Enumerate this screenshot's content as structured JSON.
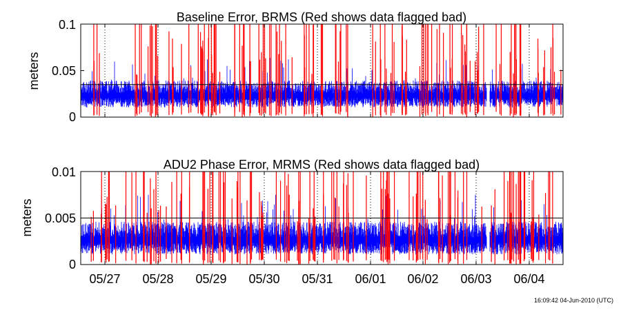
{
  "timestamp": "16:09:42 04-Jun-2010 (UTC)",
  "colors": {
    "good": "#0000ff",
    "bad": "#ff0000",
    "axis": "#000000",
    "background": "#ffffff"
  },
  "chart_data": [
    {
      "type": "line",
      "title": "Baseline Error, BRMS (Red shows data flagged bad)",
      "ylabel": "meters",
      "ylim": [
        0,
        0.1
      ],
      "yticks": [
        "0",
        "0.05",
        "0.1"
      ],
      "threshold": 0.035,
      "grid": "dotted vertical at day boundaries",
      "x_range": [
        "05/26 ~14:00",
        "06/04 ~16:09"
      ],
      "series": [
        {
          "values_summary": {
            "typical_range": [
              0.012,
              0.035
            ],
            "median": 0.022
          },
          "color": "#0000ff"
        },
        {
          "values_summary": {
            "flagged_spikes": "frequent vertical spikes reaching 0.04 to above 0.1"
          },
          "color": "#ff0000"
        }
      ],
      "data_gap_near": "06/03 ~06:00"
    },
    {
      "type": "line",
      "title": "ADU2 Phase Error, MRMS (Red shows data flagged bad)",
      "ylabel": "meters",
      "ylim": [
        0,
        0.01
      ],
      "yticks": [
        "0",
        "0.005",
        "0.01"
      ],
      "threshold": 0.005,
      "grid": "dotted vertical at day boundaries",
      "x_range": [
        "05/26 ~14:00",
        "06/04 ~16:09"
      ],
      "xticks": [
        "05/27",
        "05/28",
        "05/29",
        "05/30",
        "05/31",
        "06/01",
        "06/02",
        "06/03",
        "06/04"
      ],
      "series": [
        {
          "values_summary": {
            "typical_range": [
              0.0012,
              0.004
            ],
            "median": 0.0025
          },
          "color": "#0000ff"
        },
        {
          "values_summary": {
            "flagged_spikes": "frequent vertical spikes reaching 0.004 to above 0.01"
          },
          "color": "#ff0000"
        }
      ],
      "data_gap_near": "06/03 ~06:00"
    }
  ]
}
